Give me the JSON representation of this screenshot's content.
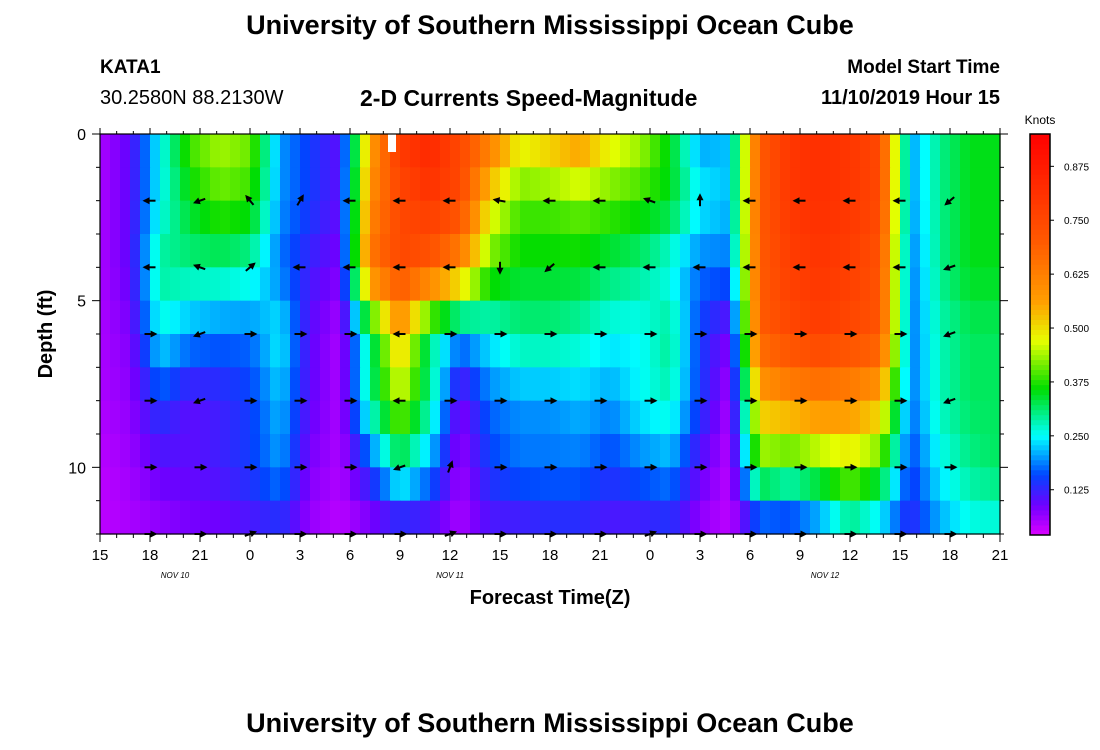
{
  "header": {
    "title": "University of Southern Mississippi Ocean Cube",
    "station_id": "KATA1",
    "station_coords": "30.2580N 88.2130W",
    "chart_title": "2-D Currents Speed-Magnitude",
    "model_start_label": "Model Start Time",
    "model_start_time": "11/10/2019 Hour 15"
  },
  "footer": {
    "title": "University of Southern Mississippi Ocean Cube"
  },
  "chart_data": {
    "type": "heatmap",
    "title": "2-D Currents Speed-Magnitude",
    "xlabel": "Forecast Time(Z)",
    "ylabel": "Depth (ft)",
    "x_hours_range": [
      0,
      54
    ],
    "x_tick_labels": [
      "15",
      "18",
      "21",
      "0",
      "3",
      "6",
      "9",
      "12",
      "15",
      "18",
      "21",
      "0",
      "3",
      "6",
      "9",
      "12",
      "15",
      "18",
      "21"
    ],
    "date_labels": [
      {
        "text": "NOV 10",
        "hour": 4.5
      },
      {
        "text": "NOV 11",
        "hour": 21
      },
      {
        "text": "NOV 12",
        "hour": 43.5
      }
    ],
    "y_range_ft": [
      0,
      12
    ],
    "y_ticks": [
      0,
      5,
      10
    ],
    "colorbar": {
      "label": "Knots",
      "range": [
        0.02,
        0.95
      ],
      "tick_values": [
        0.125,
        0.25,
        0.375,
        0.5,
        0.625,
        0.75,
        0.875
      ],
      "tick_labels": [
        "0.125",
        "0.250",
        "0.375",
        "0.500",
        "0.625",
        "0.750",
        "0.875"
      ]
    },
    "depth_levels_ft": [
      0,
      2,
      4,
      6,
      8,
      10,
      12
    ],
    "speed_knots": {
      "0": [
        0.05,
        0.1,
        0.25,
        0.4,
        0.45,
        0.42,
        0.2,
        0.15,
        0.1,
        0.55,
        0.8,
        0.85,
        0.75,
        0.65,
        0.5,
        0.55,
        0.6,
        0.5,
        0.45,
        0.35,
        0.2,
        0.22,
        0.7,
        0.8,
        0.82,
        0.8,
        0.75,
        0.2,
        0.3,
        0.35,
        0.35
      ],
      "2": [
        0.05,
        0.1,
        0.25,
        0.35,
        0.4,
        0.38,
        0.2,
        0.15,
        0.1,
        0.6,
        0.75,
        0.8,
        0.75,
        0.5,
        0.4,
        0.4,
        0.42,
        0.4,
        0.38,
        0.35,
        0.25,
        0.22,
        0.7,
        0.8,
        0.82,
        0.8,
        0.75,
        0.2,
        0.3,
        0.35,
        0.35
      ],
      "4": [
        0.05,
        0.1,
        0.3,
        0.3,
        0.3,
        0.28,
        0.18,
        0.12,
        0.08,
        0.65,
        0.75,
        0.7,
        0.6,
        0.4,
        0.35,
        0.35,
        0.35,
        0.32,
        0.3,
        0.25,
        0.18,
        0.18,
        0.7,
        0.78,
        0.8,
        0.78,
        0.72,
        0.18,
        0.3,
        0.35,
        0.35
      ],
      "6": [
        0.05,
        0.08,
        0.25,
        0.2,
        0.18,
        0.18,
        0.25,
        0.1,
        0.05,
        0.3,
        0.55,
        0.3,
        0.2,
        0.25,
        0.3,
        0.3,
        0.28,
        0.25,
        0.25,
        0.3,
        0.15,
        0.08,
        0.7,
        0.75,
        0.78,
        0.75,
        0.72,
        0.18,
        0.28,
        0.32,
        0.32
      ],
      "8": [
        0.05,
        0.07,
        0.15,
        0.1,
        0.12,
        0.15,
        0.22,
        0.1,
        0.05,
        0.3,
        0.45,
        0.3,
        0.08,
        0.18,
        0.2,
        0.2,
        0.22,
        0.2,
        0.25,
        0.28,
        0.15,
        0.05,
        0.55,
        0.6,
        0.62,
        0.6,
        0.55,
        0.18,
        0.28,
        0.32,
        0.32
      ],
      "10": [
        0.04,
        0.06,
        0.1,
        0.1,
        0.12,
        0.15,
        0.2,
        0.08,
        0.05,
        0.15,
        0.3,
        0.2,
        0.06,
        0.15,
        0.18,
        0.18,
        0.18,
        0.15,
        0.18,
        0.2,
        0.1,
        0.04,
        0.4,
        0.35,
        0.4,
        0.45,
        0.38,
        0.15,
        0.25,
        0.3,
        0.32
      ],
      "12": [
        0.04,
        0.05,
        0.06,
        0.08,
        0.08,
        0.1,
        0.12,
        0.06,
        0.04,
        0.06,
        0.08,
        0.08,
        0.05,
        0.1,
        0.1,
        0.12,
        0.12,
        0.1,
        0.1,
        0.12,
        0.06,
        0.04,
        0.1,
        0.1,
        0.15,
        0.25,
        0.2,
        0.12,
        0.2,
        0.25,
        0.25
      ]
    },
    "vector_rows_ft": [
      2,
      4,
      6,
      8,
      10,
      12
    ],
    "vector_times_hr": [
      3,
      6,
      9,
      12,
      15,
      18,
      21,
      24,
      27,
      30,
      33,
      36,
      39,
      42,
      45,
      48,
      51
    ],
    "vector_angles_deg": {
      "2": [
        180,
        200,
        130,
        60,
        180,
        180,
        180,
        170,
        180,
        180,
        160,
        90,
        180,
        180,
        180,
        180,
        220
      ],
      "4": [
        180,
        160,
        40,
        180,
        180,
        180,
        180,
        270,
        220,
        180,
        180,
        180,
        180,
        180,
        180,
        180,
        200
      ],
      "6": [
        0,
        200,
        0,
        0,
        0,
        180,
        0,
        0,
        0,
        0,
        0,
        0,
        0,
        0,
        0,
        0,
        200
      ],
      "8": [
        0,
        200,
        0,
        0,
        0,
        180,
        0,
        0,
        0,
        0,
        0,
        0,
        0,
        0,
        0,
        0,
        200
      ],
      "10": [
        0,
        0,
        0,
        0,
        0,
        200,
        70,
        0,
        0,
        0,
        0,
        0,
        0,
        0,
        0,
        0,
        0
      ],
      "12": [
        0,
        0,
        20,
        0,
        0,
        0,
        20,
        0,
        0,
        0,
        20,
        0,
        0,
        0,
        0,
        0,
        0
      ]
    }
  }
}
